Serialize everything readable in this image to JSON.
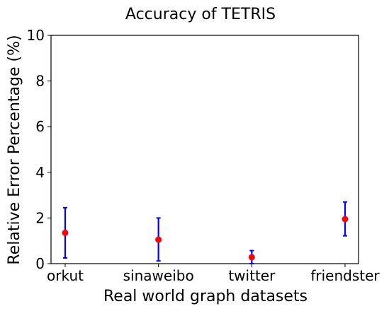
{
  "chart_data": {
    "type": "scatter",
    "title": "Accuracy of TETRIS",
    "xlabel": "Real world graph datasets",
    "ylabel": "Relative Error Percentage (%)",
    "categories": [
      "orkut",
      "sinaweibo",
      "twitter",
      "friendster"
    ],
    "ylim": [
      0,
      10
    ],
    "yticks": [
      0,
      2,
      4,
      6,
      8,
      10
    ],
    "grid": false,
    "series": [
      {
        "values": [
          1.35,
          1.05,
          0.28,
          1.95
        ],
        "error_low": [
          0.25,
          0.12,
          0.0,
          1.22
        ],
        "error_high": [
          2.45,
          2.0,
          0.57,
          2.7
        ]
      }
    ]
  },
  "colors": {
    "marker": "#ff0000",
    "errorbar": "#0000ff",
    "axes": "#000000"
  }
}
